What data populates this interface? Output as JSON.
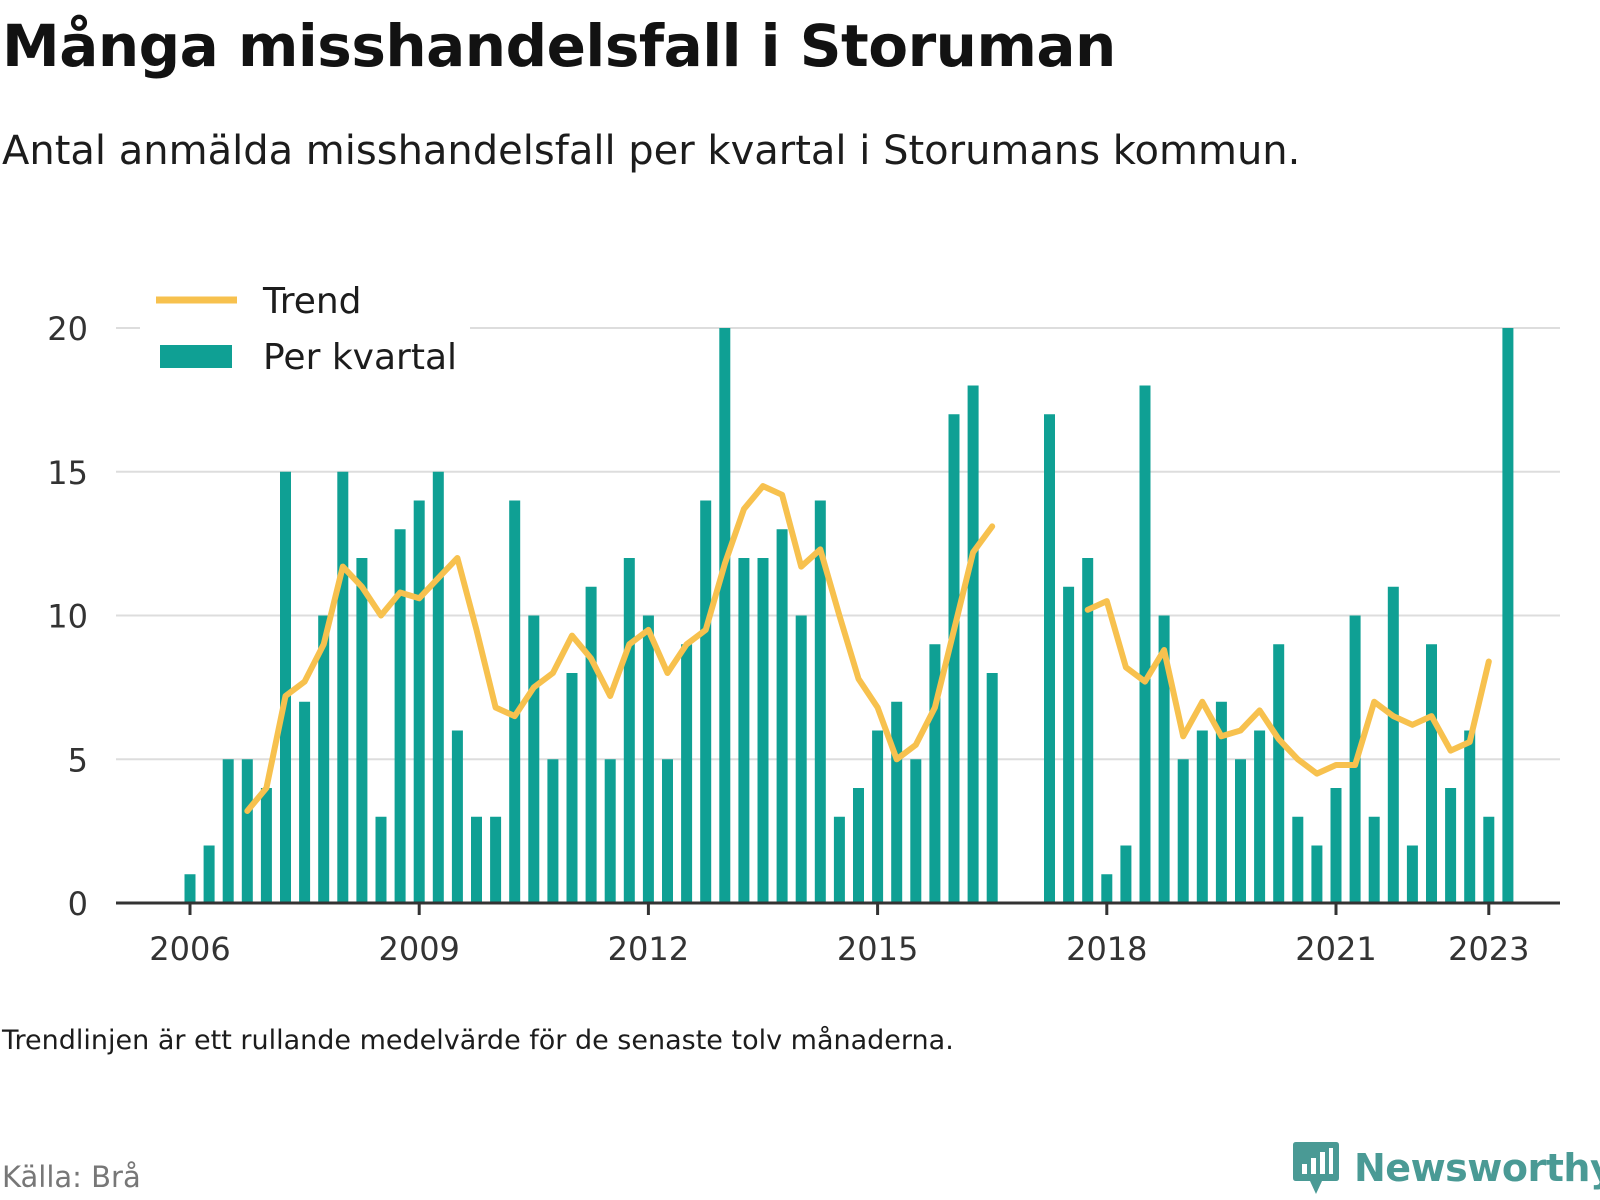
{
  "title": "Många misshandelsfall i Storuman",
  "subtitle": "Antal anmälda misshandelsfall per kvartal i Storumans kommun.",
  "note": "Trendlinjen är ett rullande medelvärde för de senaste tolv månaderna.",
  "source": "Källa: Brå",
  "brand": "Newsworthy",
  "colors": {
    "bars": "#0fa094",
    "trend": "#f7c14e",
    "grid": "#dddddd",
    "axis": "#333333"
  },
  "chart_data": {
    "type": "bar",
    "ylim": [
      0,
      20
    ],
    "y_ticks": [
      0,
      5,
      10,
      15,
      20
    ],
    "x_ticks": [
      "2006",
      "2009",
      "2012",
      "2015",
      "2018",
      "2021",
      "2023"
    ],
    "x_tick_quarter_index": [
      0,
      12,
      24,
      36,
      48,
      60,
      68
    ],
    "grid": true,
    "legend_position": "top-left",
    "series": [
      {
        "name": "Per kvartal",
        "kind": "bar",
        "values": [
          1,
          2,
          5,
          5,
          4,
          15,
          7,
          10,
          15,
          12,
          3,
          13,
          14,
          15,
          6,
          3,
          3,
          14,
          10,
          5,
          8,
          11,
          5,
          12,
          10,
          5,
          9,
          14,
          20,
          12,
          12,
          13,
          10,
          14,
          3,
          4,
          6,
          7,
          5,
          9,
          17,
          18,
          8,
          null,
          null,
          17,
          11,
          12,
          1,
          2,
          18,
          10,
          5,
          6,
          7,
          5,
          6,
          9,
          3,
          2,
          4,
          10,
          3,
          11,
          2,
          9,
          4,
          6,
          3,
          20
        ]
      },
      {
        "name": "Trend",
        "kind": "line",
        "values": [
          null,
          null,
          null,
          3.2,
          4,
          7.2,
          7.7,
          9,
          11.7,
          11,
          10,
          10.8,
          10.6,
          11.3,
          12,
          9.5,
          6.8,
          6.5,
          7.5,
          8,
          9.3,
          8.5,
          7.2,
          9,
          9.5,
          8,
          9,
          9.5,
          11.8,
          13.7,
          14.5,
          14.2,
          11.7,
          12.3,
          10,
          7.8,
          6.8,
          5,
          5.5,
          6.8,
          9.5,
          12.2,
          13.1,
          null,
          null,
          null,
          null,
          10.2,
          10.5,
          8.2,
          7.7,
          8.8,
          5.8,
          7,
          5.8,
          6,
          6.7,
          5.7,
          5,
          4.5,
          4.8,
          4.8,
          7,
          6.5,
          6.2,
          6.5,
          5.3,
          5.6,
          8.4
        ]
      }
    ]
  }
}
